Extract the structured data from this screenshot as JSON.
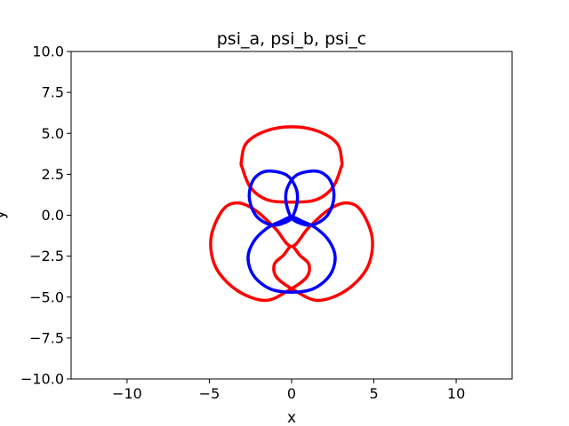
{
  "chart_data": {
    "type": "line",
    "title": "psi_a, psi_b, psi_c",
    "xlabel": "x",
    "ylabel": "y",
    "xlim": [
      -13.4,
      13.4
    ],
    "ylim": [
      -10,
      10
    ],
    "xticks": [
      -10,
      -5,
      0,
      5,
      10
    ],
    "xtick_labels": [
      "−10",
      "−5",
      "0",
      "5",
      "10"
    ],
    "yticks": [
      -10,
      -7.5,
      -5,
      -2.5,
      0,
      2.5,
      5,
      7.5,
      10
    ],
    "ytick_labels": [
      "−10.0",
      "−7.5",
      "−5.0",
      "−2.5",
      "0.0",
      "2.5",
      "5.0",
      "7.5",
      "10.0"
    ],
    "grid": false,
    "colors": {
      "red": "#ff0000",
      "blue": "#0000ff"
    },
    "series": [
      {
        "color": "#ff0000",
        "closed": true,
        "points": [
          [
            0,
            5.4
          ],
          [
            1.55,
            5.15
          ],
          [
            2.75,
            4.4
          ],
          [
            3.05,
            3.3
          ],
          [
            3.0,
            2.9
          ],
          [
            2.5,
            1.7
          ],
          [
            1.5,
            0.95
          ],
          [
            0,
            0.8
          ],
          [
            -1.5,
            0.95
          ],
          [
            -2.5,
            1.7
          ],
          [
            -3.0,
            2.9
          ],
          [
            -3.05,
            3.3
          ],
          [
            -2.75,
            4.4
          ],
          [
            -1.55,
            5.15
          ]
        ]
      },
      {
        "color": "#ff0000",
        "closed": true,
        "points": [
          [
            0,
            -1.9
          ],
          [
            1.0,
            -0.8
          ],
          [
            2.2,
            0.3
          ],
          [
            3.3,
            0.75
          ],
          [
            4.2,
            0.3
          ],
          [
            4.9,
            -1.4
          ],
          [
            4.6,
            -3.2
          ],
          [
            3.3,
            -4.6
          ],
          [
            1.6,
            -5.2
          ],
          [
            0.2,
            -4.6
          ],
          [
            -0.9,
            -3.8
          ],
          [
            -1.05,
            -3.0
          ],
          [
            -0.5,
            -2.45
          ],
          [
            0,
            -1.9
          ],
          [
            0.5,
            -2.45
          ],
          [
            1.05,
            -3.0
          ],
          [
            0.9,
            -3.8
          ],
          [
            -0.2,
            -4.6
          ],
          [
            -1.6,
            -5.2
          ],
          [
            -3.3,
            -4.6
          ],
          [
            -4.6,
            -3.2
          ],
          [
            -4.9,
            -1.4
          ],
          [
            -4.2,
            0.3
          ],
          [
            -3.3,
            0.75
          ],
          [
            -2.2,
            0.3
          ],
          [
            -1.0,
            -0.8
          ]
        ]
      },
      {
        "color": "#0000ff",
        "closed": true,
        "points": [
          [
            -1.3,
            2.7
          ],
          [
            -0.3,
            2.45
          ],
          [
            0.25,
            1.7
          ],
          [
            0.35,
            0.9
          ],
          [
            0.1,
            0.0
          ],
          [
            -0.3,
            -0.4
          ],
          [
            -1.2,
            -0.6
          ],
          [
            -2.1,
            -0.1
          ],
          [
            -2.55,
            0.9
          ],
          [
            -2.45,
            1.9
          ],
          [
            -2.0,
            2.5
          ]
        ]
      },
      {
        "color": "#0000ff",
        "closed": true,
        "points": [
          [
            1.3,
            2.7
          ],
          [
            0.3,
            2.45
          ],
          [
            -0.25,
            1.7
          ],
          [
            -0.35,
            0.9
          ],
          [
            -0.1,
            0.0
          ],
          [
            0.3,
            -0.4
          ],
          [
            1.2,
            -0.6
          ],
          [
            2.1,
            -0.1
          ],
          [
            2.55,
            0.9
          ],
          [
            2.45,
            1.9
          ],
          [
            2.0,
            2.5
          ]
        ]
      },
      {
        "color": "#0000ff",
        "closed": true,
        "points": [
          [
            0,
            -0.1
          ],
          [
            0.6,
            -0.35
          ],
          [
            1.5,
            -0.8
          ],
          [
            2.3,
            -1.6
          ],
          [
            2.65,
            -2.6
          ],
          [
            2.3,
            -3.7
          ],
          [
            1.3,
            -4.5
          ],
          [
            0,
            -4.7
          ],
          [
            -1.3,
            -4.5
          ],
          [
            -2.3,
            -3.7
          ],
          [
            -2.65,
            -2.6
          ],
          [
            -2.3,
            -1.6
          ],
          [
            -1.5,
            -0.8
          ],
          [
            -0.6,
            -0.35
          ]
        ]
      }
    ]
  }
}
